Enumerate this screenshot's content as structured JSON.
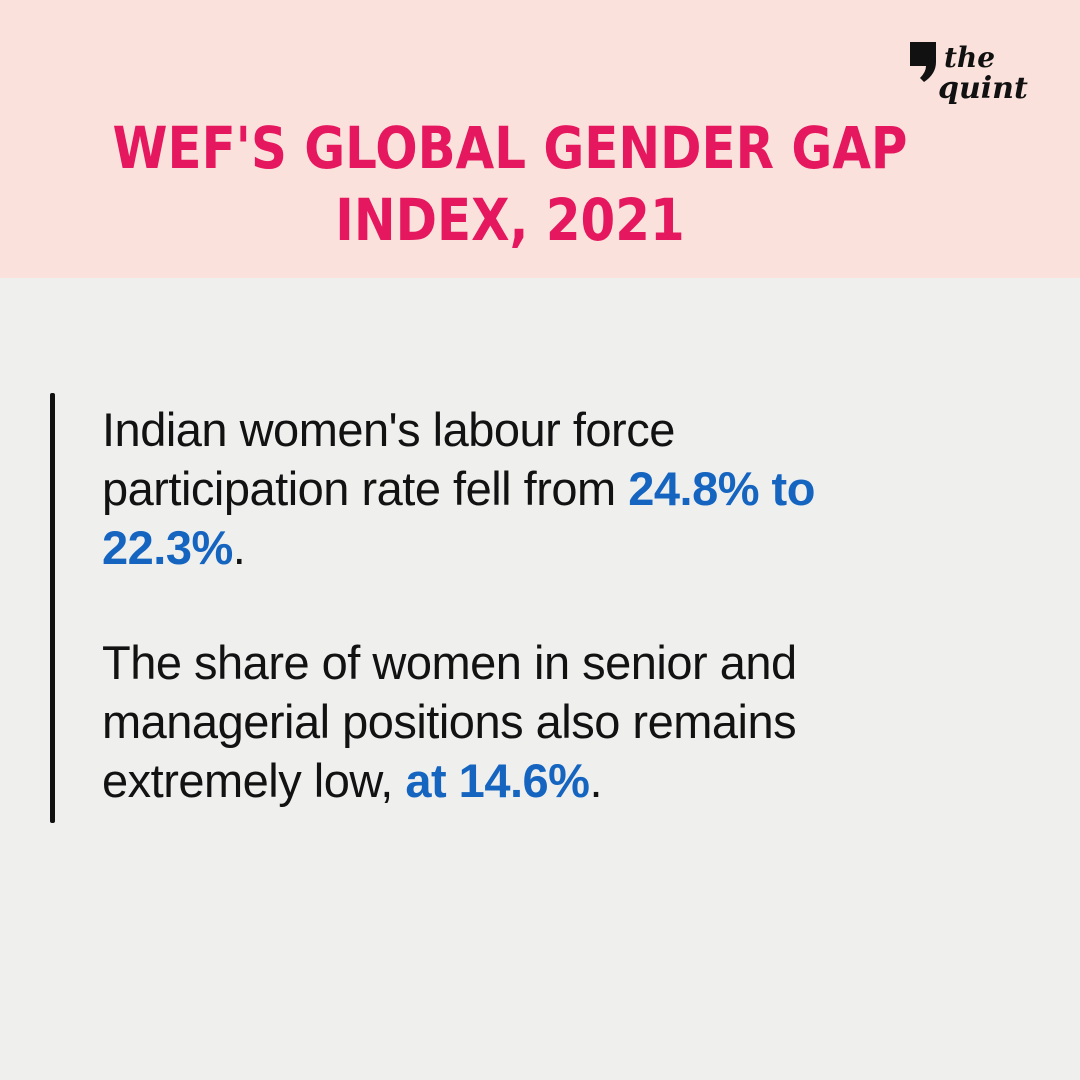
{
  "header": {
    "title_line1": "WEF'S GLOBAL GENDER GAP",
    "title_line2": "INDEX, 2021",
    "logo": {
      "top_word": "the",
      "bottom_word": "quint",
      "icon": "quote-mark-icon"
    }
  },
  "paragraph1": {
    "line1": "Indian women's labour force",
    "line2_plain": "participation rate fell from ",
    "line2_highlight": "24.8% to",
    "line3_highlight": "22.3%",
    "line3_plain": "."
  },
  "paragraph2": {
    "line1": "The share of women in senior and",
    "line2": "managerial positions also remains",
    "line3_plain": "extremely low, ",
    "line3_highlight": "at 14.6%",
    "line3_end": "."
  },
  "colors": {
    "header_bg": "#fbe1db",
    "title": "#e5175e",
    "highlight": "#1565c0",
    "body_bg": "#efefee",
    "text": "#121212"
  }
}
